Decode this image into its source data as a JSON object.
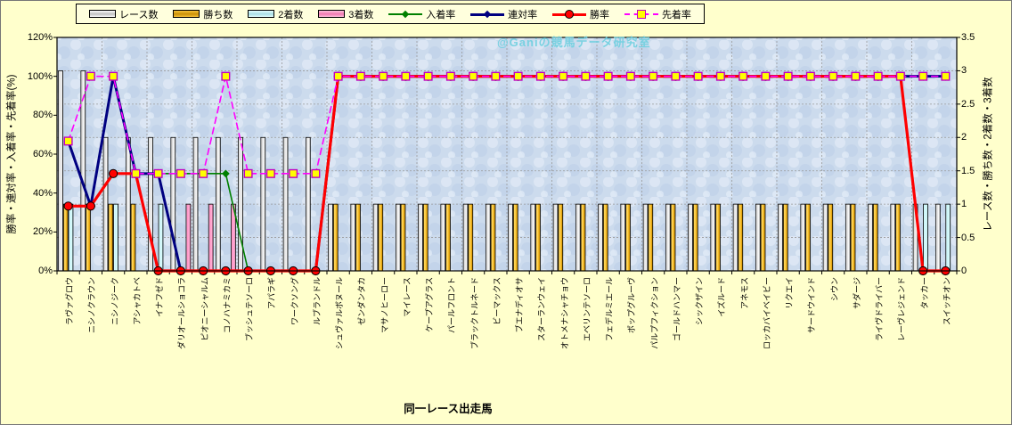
{
  "watermark": "@Ganiの競馬データ研究室",
  "colors": {
    "page_background": "#ffffcc",
    "plot_background": "#ccdbed",
    "gridline": "#999999",
    "watermark_text": "#6fd0e0"
  },
  "chart_data": {
    "type": "bar+line combo",
    "title": "",
    "xlabel": "同一レース出走馬",
    "ylabel_left": "勝率・連対率・入着率・先着率(%)",
    "ylabel_right": "レース数・勝ち数・2着数・3着数",
    "ylim_left": [
      0,
      120
    ],
    "ylim_right": [
      0,
      3.5
    ],
    "yticks_left": [
      "0%",
      "20%",
      "40%",
      "60%",
      "80%",
      "100%",
      "120%"
    ],
    "yticks_right": [
      "0",
      "0.5",
      "1",
      "1.5",
      "2",
      "2.5",
      "3",
      "3.5"
    ],
    "grid": "on",
    "legend_position": "top",
    "categories": [
      "ラヴァグロウ",
      "ニシノクラウン",
      "ニシノジーク",
      "アシャカトベ",
      "イナフゼド",
      "ダリオールショコラ",
      "ピオニーシャルム",
      "コノハナミカミ",
      "ブッシュテソーロ",
      "アパラギ",
      "ワークソング",
      "ルブランドル",
      "シュヴァルボヌール",
      "ゼンダンタカ",
      "マサノヒーロー",
      "マイレース",
      "ケープアグラス",
      "パールフロント",
      "ブラックトルネード",
      "ビーマックス",
      "ブエナディオサ",
      "スターランウェイ",
      "オトメナシャチョウ",
      "エベリンテソーロ",
      "フェデルミエール",
      "ポップグルーヴ",
      "パルプフィクション",
      "ゴールドハンマー",
      "シックザイン",
      "イズルード",
      "アネモス",
      "ロッカバイベイビー",
      "リクエイ",
      "サードウインド",
      "シウン",
      "サダージ",
      "ライヴドライバー",
      "レーヴレジェンド",
      "タッカー",
      "スイッチオン"
    ],
    "series": [
      {
        "name": "レース数",
        "type": "bar",
        "axis": "right",
        "color": "#ffffff",
        "values": [
          3,
          3,
          2,
          2,
          2,
          2,
          2,
          2,
          2,
          2,
          2,
          2,
          1,
          1,
          1,
          1,
          1,
          1,
          1,
          1,
          1,
          1,
          1,
          1,
          1,
          1,
          1,
          1,
          1,
          1,
          1,
          1,
          1,
          1,
          1,
          1,
          1,
          1,
          1,
          1
        ]
      },
      {
        "name": "勝ち数",
        "type": "bar",
        "axis": "right",
        "color": "#ffc000",
        "values": [
          1,
          1,
          1,
          1,
          0,
          0,
          0,
          0,
          0,
          0,
          0,
          0,
          1,
          1,
          1,
          1,
          1,
          1,
          1,
          1,
          1,
          1,
          1,
          1,
          1,
          1,
          1,
          1,
          1,
          1,
          1,
          1,
          1,
          1,
          1,
          1,
          1,
          1,
          0,
          0
        ]
      },
      {
        "name": "2着数",
        "type": "bar",
        "axis": "right",
        "color": "#ccffff",
        "values": [
          1,
          0,
          1,
          0,
          1,
          0,
          0,
          0,
          0,
          0,
          0,
          0,
          0,
          0,
          0,
          0,
          0,
          0,
          0,
          0,
          0,
          0,
          0,
          0,
          0,
          0,
          0,
          0,
          0,
          0,
          0,
          0,
          0,
          0,
          0,
          0,
          0,
          0,
          1,
          1
        ]
      },
      {
        "name": "3着数",
        "type": "bar",
        "axis": "right",
        "color": "#ff99cc",
        "values": [
          0,
          0,
          0,
          0,
          0,
          1,
          1,
          1,
          0,
          0,
          0,
          0,
          0,
          0,
          0,
          0,
          0,
          0,
          0,
          0,
          0,
          0,
          0,
          0,
          0,
          0,
          0,
          0,
          0,
          0,
          0,
          0,
          0,
          0,
          0,
          0,
          0,
          0,
          0,
          0
        ]
      },
      {
        "name": "入着率",
        "type": "line",
        "axis": "left",
        "color": "#008000",
        "marker": "diamond",
        "dashed": false,
        "values": [
          66.7,
          33.3,
          100,
          50,
          50,
          50,
          50,
          50,
          0,
          0,
          0,
          0,
          100,
          100,
          100,
          100,
          100,
          100,
          100,
          100,
          100,
          100,
          100,
          100,
          100,
          100,
          100,
          100,
          100,
          100,
          100,
          100,
          100,
          100,
          100,
          100,
          100,
          100,
          100,
          100
        ]
      },
      {
        "name": "連対率",
        "type": "line",
        "axis": "left",
        "color": "#000080",
        "marker": "diamond",
        "dashed": false,
        "values": [
          66.7,
          33.3,
          100,
          50,
          50,
          0,
          0,
          0,
          0,
          0,
          0,
          0,
          100,
          100,
          100,
          100,
          100,
          100,
          100,
          100,
          100,
          100,
          100,
          100,
          100,
          100,
          100,
          100,
          100,
          100,
          100,
          100,
          100,
          100,
          100,
          100,
          100,
          100,
          100,
          100
        ]
      },
      {
        "name": "勝率",
        "type": "line",
        "axis": "left",
        "color": "#ff0000",
        "marker": "circle",
        "marker_fill": "#ff0000",
        "dashed": false,
        "values": [
          33.3,
          33.3,
          50,
          50,
          0,
          0,
          0,
          0,
          0,
          0,
          0,
          0,
          100,
          100,
          100,
          100,
          100,
          100,
          100,
          100,
          100,
          100,
          100,
          100,
          100,
          100,
          100,
          100,
          100,
          100,
          100,
          100,
          100,
          100,
          100,
          100,
          100,
          100,
          0,
          0
        ]
      },
      {
        "name": "先着率",
        "type": "line",
        "axis": "left",
        "color": "#ff00ff",
        "marker": "square",
        "marker_fill": "#ffff00",
        "dashed": true,
        "values": [
          66.7,
          100,
          100,
          50,
          50,
          50,
          50,
          100,
          50,
          50,
          50,
          50,
          100,
          100,
          100,
          100,
          100,
          100,
          100,
          100,
          100,
          100,
          100,
          100,
          100,
          100,
          100,
          100,
          100,
          100,
          100,
          100,
          100,
          100,
          100,
          100,
          100,
          100,
          100,
          100
        ]
      }
    ]
  }
}
